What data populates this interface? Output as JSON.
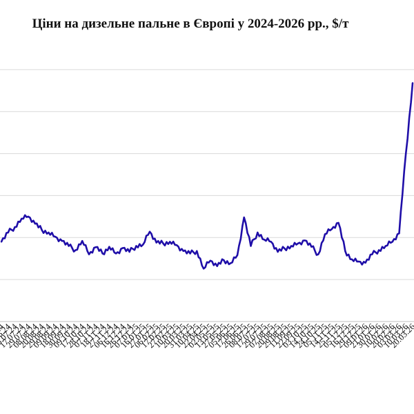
{
  "chart_data": {
    "type": "line",
    "title": "Ціни на дизельне пальне в Європі у 2024-2026 рр., $/т",
    "xlabel": "",
    "ylabel": "",
    "ylim": [
      400,
      1100
    ],
    "grid": true,
    "legend": "none",
    "colors": {
      "line": "#1f0ea8",
      "grid": "#d9d9d9",
      "axis": "#bfbfbf"
    },
    "categories": [
      "14.06.24",
      "25.06.24",
      "05.07.24",
      "17.07.24",
      "29.07.24",
      "08.08.24",
      "20.08.24",
      "29.08.24",
      "09.09.24",
      "18.09.24",
      "30.09.24",
      "09.10.24",
      "17.10.24",
      "28.10.24",
      "07.11.24",
      "18.11.24",
      "27.11.24",
      "06.12.24",
      "16.12.24",
      "26.12.24",
      "07.01.25",
      "16.01.25",
      "27.01.25",
      "06.02.25",
      "17.02.25",
      "27.02.25",
      "10.03.25",
      "20.03.25",
      "31.03.25",
      "10.04.25",
      "22.04.25",
      "02.05.25",
      "13.05.25",
      "27.05.25",
      "05.06.25",
      "17.06.25",
      "26.06.25",
      "08.07.25",
      "17.07.25",
      "29.07.25",
      "07.08.25",
      "20.08.25",
      "29.08.25",
      "11.09.25",
      "22.09.25",
      "03.10.25",
      "14.10.25",
      "24.10.25",
      "05.11.25",
      "14.11.25",
      "25.11.25",
      "05.12.25",
      "16.12.25",
      "29.12.25",
      "09.01.26",
      "21.01.26",
      "30.01.26",
      "10.02.26",
      "20.02.26",
      "03.03.26",
      "10.03.26",
      "20.03.26"
    ],
    "values": [
      590,
      612,
      625,
      645,
      650,
      633,
      618,
      612,
      602,
      592,
      580,
      570,
      592,
      560,
      577,
      562,
      578,
      562,
      575,
      566,
      580,
      583,
      614,
      588,
      586,
      590,
      582,
      568,
      562,
      568,
      526,
      545,
      532,
      546,
      539,
      558,
      648,
      580,
      612,
      595,
      590,
      566,
      574,
      580,
      586,
      593,
      578,
      560,
      608,
      620,
      635,
      568,
      548,
      543,
      540,
      560,
      570,
      580,
      590,
      610,
      800,
      968
    ]
  }
}
